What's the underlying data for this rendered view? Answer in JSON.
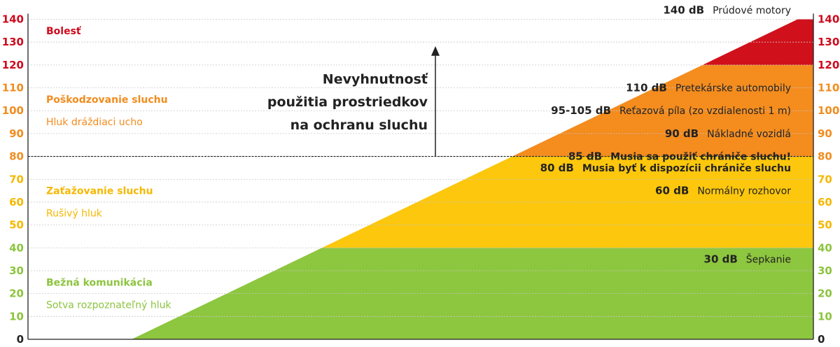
{
  "chart_data": {
    "type": "area",
    "title": "",
    "xlabel": "",
    "ylabel": "",
    "ylim": [
      0,
      140
    ],
    "y_ticks": [
      "0",
      "10",
      "20",
      "30",
      "40",
      "50",
      "60",
      "70",
      "80",
      "90",
      "100",
      "110",
      "120",
      "130",
      "140"
    ],
    "grid": true,
    "threshold_value": 80,
    "bands": [
      {
        "from": 0,
        "to": 40,
        "color": "#8dc63f"
      },
      {
        "from": 40,
        "to": 80,
        "color": "#fcc70c"
      },
      {
        "from": 80,
        "to": 120,
        "color": "#f48c1e"
      },
      {
        "from": 120,
        "to": 140,
        "color": "#d0111b"
      }
    ],
    "categories": [
      {
        "title": "Bolesť",
        "subtitle": "",
        "value": 135,
        "color": "#cf0a1d"
      },
      {
        "title": "Poškodzovanie sluchu",
        "subtitle": "Hluk dráždiaci ucho",
        "value": 105,
        "color": "#f28c1e"
      },
      {
        "title": "Zaťažovanie sluchu",
        "subtitle": "Rušivý hluk",
        "value": 65,
        "color": "#f5b800"
      },
      {
        "title": "Bežná komunikácia",
        "subtitle": "Sotva rozpoznateľný hluk",
        "value": 25,
        "color": "#8cc43e"
      }
    ],
    "examples": [
      {
        "db": "140 dB",
        "label": "Prúdové motory",
        "value": 144,
        "bold": false
      },
      {
        "db": "110 dB",
        "label": "Pretekárske automobily",
        "value": 110,
        "bold": false
      },
      {
        "db": "95-105 dB",
        "label": "Reťazová píla (zo vzdialenosti 1 m)",
        "value": 100,
        "bold": false
      },
      {
        "db": "90 dB",
        "label": "Nákladné vozidlá",
        "value": 90,
        "bold": false
      },
      {
        "db": "85 dB",
        "label": "Musia sa použiť chrániče sluchu!",
        "value": 80,
        "bold": true
      },
      {
        "db": "80 dB",
        "label": "Musia byť k dispozícii chrániče sluchu",
        "value": 75,
        "bold": true
      },
      {
        "db": "60 dB",
        "label": "Normálny rozhovor",
        "value": 65,
        "bold": false
      },
      {
        "db": "30 dB",
        "label": "Šepkanie",
        "value": 35,
        "bold": false
      }
    ],
    "center_text": [
      "Nevyhnutnosť",
      "použitia prostriedkov",
      "na ochranu sluchu"
    ],
    "tick_colors": {
      "red": "#cf0a1d",
      "orange": "#f28c1e",
      "yellow": "#f5b800",
      "green": "#8cc43e"
    }
  }
}
